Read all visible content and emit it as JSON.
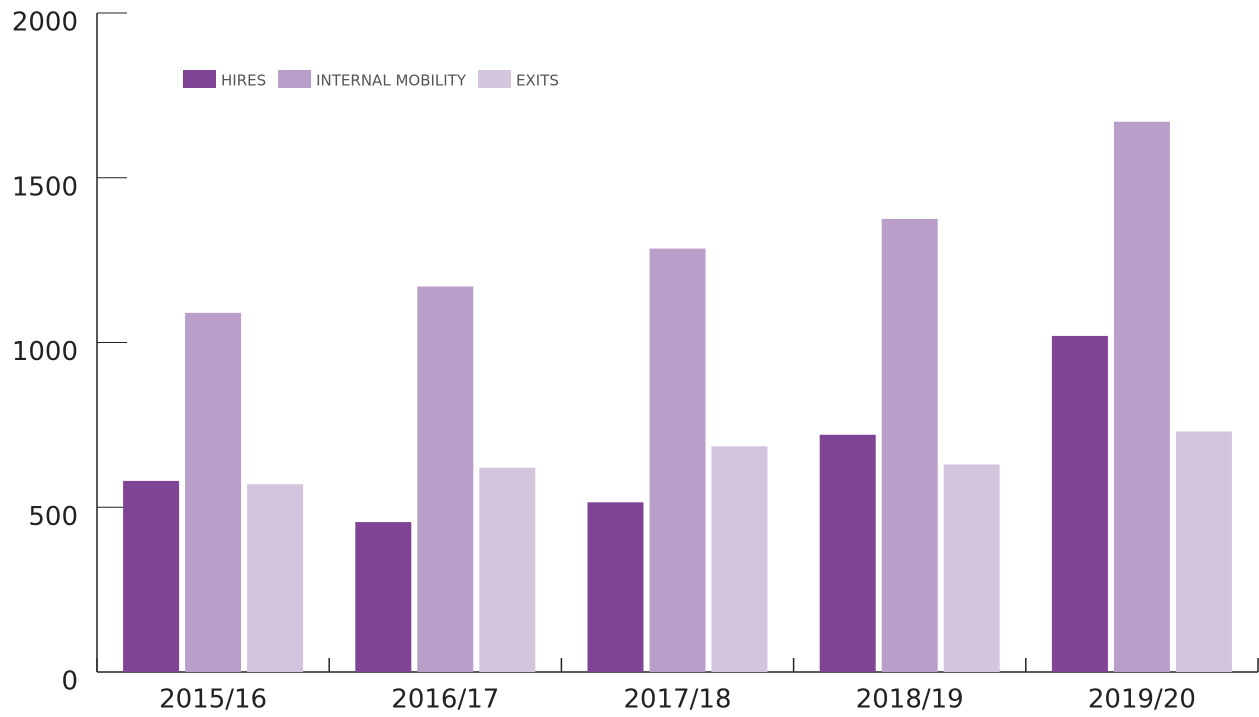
{
  "chart_data": {
    "type": "bar",
    "categories": [
      "2015/16",
      "2016/17",
      "2017/18",
      "2018/19",
      "2019/20"
    ],
    "series": [
      {
        "name": "HIRES",
        "color": "#7f4594",
        "values": [
          580,
          455,
          515,
          720,
          1020
        ]
      },
      {
        "name": "INTERNAL MOBILITY",
        "color": "#b89ec8",
        "values": [
          1090,
          1170,
          1285,
          1375,
          1670
        ]
      },
      {
        "name": "EXITS",
        "color": "#d4c5df",
        "values": [
          570,
          620,
          685,
          630,
          730
        ]
      }
    ],
    "ylim": [
      0,
      2000
    ],
    "yticks": [
      0,
      500,
      1000,
      1500,
      2000
    ],
    "legend": "top-left"
  }
}
